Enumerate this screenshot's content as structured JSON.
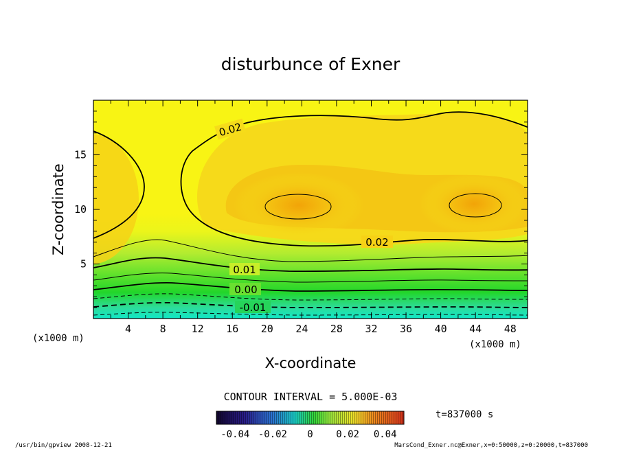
{
  "chart_data": {
    "type": "contour",
    "title": "disturbunce of Exner",
    "xlabel": "X-coordinate",
    "ylabel": "Z-coordinate",
    "x_unit_left": "(x1000 m)",
    "x_unit_right": "(x1000 m)",
    "xlim": [
      0,
      50
    ],
    "ylim": [
      0,
      20
    ],
    "x_ticks": [
      4,
      8,
      12,
      16,
      20,
      24,
      28,
      32,
      36,
      40,
      44,
      48
    ],
    "y_ticks": [
      5,
      10,
      15
    ],
    "contour_interval_text": "CONTOUR INTERVAL = 5.000E-03",
    "contour_levels": [
      -0.01,
      -0.005,
      0.0,
      0.005,
      0.01,
      0.015,
      0.02,
      0.025
    ],
    "contour_labels": [
      "0.02",
      "0.02",
      "0.01",
      "0.00",
      "-0.01"
    ],
    "maxima": [
      {
        "x": 23.5,
        "z": 10.2,
        "value_range": ">0.025"
      },
      {
        "x": 43.5,
        "z": 10.4,
        "value_range": ">0.025"
      }
    ],
    "colorbar": {
      "range": [
        -0.05,
        0.05
      ],
      "tick_labels": [
        "-0.04",
        "-0.02",
        "0",
        "0.02",
        "0.04"
      ],
      "tick_values": [
        -0.04,
        -0.02,
        0,
        0.02,
        0.04
      ]
    },
    "time_label": "t=837000 s",
    "footer_left": "/usr/bin/gpview   2008-12-21",
    "footer_right": "MarsCond_Exner.nc@Exner,x=0:50000,z=0:20000,t=837000"
  },
  "colors": {
    "teal": "#1ff0c4",
    "green": "#22d62a",
    "light_green": "#a8ee3a",
    "yellow": "#f6f514",
    "orange": "#f2ad0a",
    "line": "#000000"
  }
}
